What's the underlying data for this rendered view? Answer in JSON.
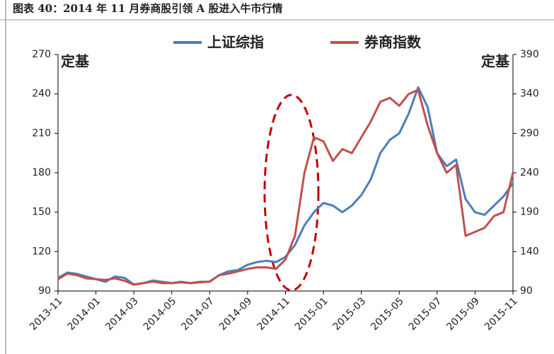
{
  "chart_data": {
    "type": "line",
    "title": "图表 40：2014 年 11 月券商股引领 A 股进入牛市行情",
    "ylabel": "定基",
    "y2label": "定基",
    "categories": [
      "2013-11",
      null,
      null,
      null,
      "2014-01",
      null,
      null,
      null,
      "2014-03",
      null,
      null,
      null,
      "2014-05",
      null,
      null,
      null,
      "2014-07",
      null,
      null,
      null,
      "2014-09",
      null,
      null,
      null,
      "2014-11",
      null,
      null,
      null,
      "2015-01",
      null,
      null,
      null,
      "2015-03",
      null,
      null,
      null,
      "2015-05",
      null,
      null,
      null,
      "2015-07",
      null,
      null,
      null,
      "2015-09",
      null,
      null,
      null,
      "2015-11"
    ],
    "series": [
      {
        "name": "上证综指",
        "color": "#4a7ebb",
        "axis": "y",
        "values": [
          100,
          104,
          103,
          101,
          99,
          97,
          101,
          100,
          95,
          96,
          98,
          97,
          96,
          97,
          96,
          97,
          97,
          102,
          105,
          106,
          110,
          112,
          113,
          112,
          116,
          125,
          140,
          150,
          157,
          155,
          150,
          155,
          163,
          175,
          195,
          205,
          210,
          225,
          245,
          230,
          195,
          185,
          190,
          160,
          150,
          148,
          155,
          162,
          172
        ]
      },
      {
        "name": "券商指数",
        "color": "#c0504d",
        "axis": "y2",
        "values": [
          105,
          112,
          110,
          106,
          105,
          104,
          106,
          103,
          98,
          100,
          102,
          100,
          100,
          101,
          100,
          101,
          102,
          110,
          112,
          115,
          118,
          120,
          120,
          118,
          130,
          160,
          240,
          285,
          280,
          255,
          270,
          265,
          285,
          305,
          330,
          335,
          325,
          340,
          345,
          300,
          265,
          240,
          250,
          160,
          165,
          170,
          185,
          190,
          240
        ]
      }
    ],
    "ylim": [
      90,
      270
    ],
    "yticks": [
      90,
      120,
      150,
      180,
      210,
      240,
      270
    ],
    "y2lim": [
      90,
      390
    ],
    "y2ticks": [
      90,
      140,
      190,
      240,
      290,
      340,
      390
    ]
  }
}
